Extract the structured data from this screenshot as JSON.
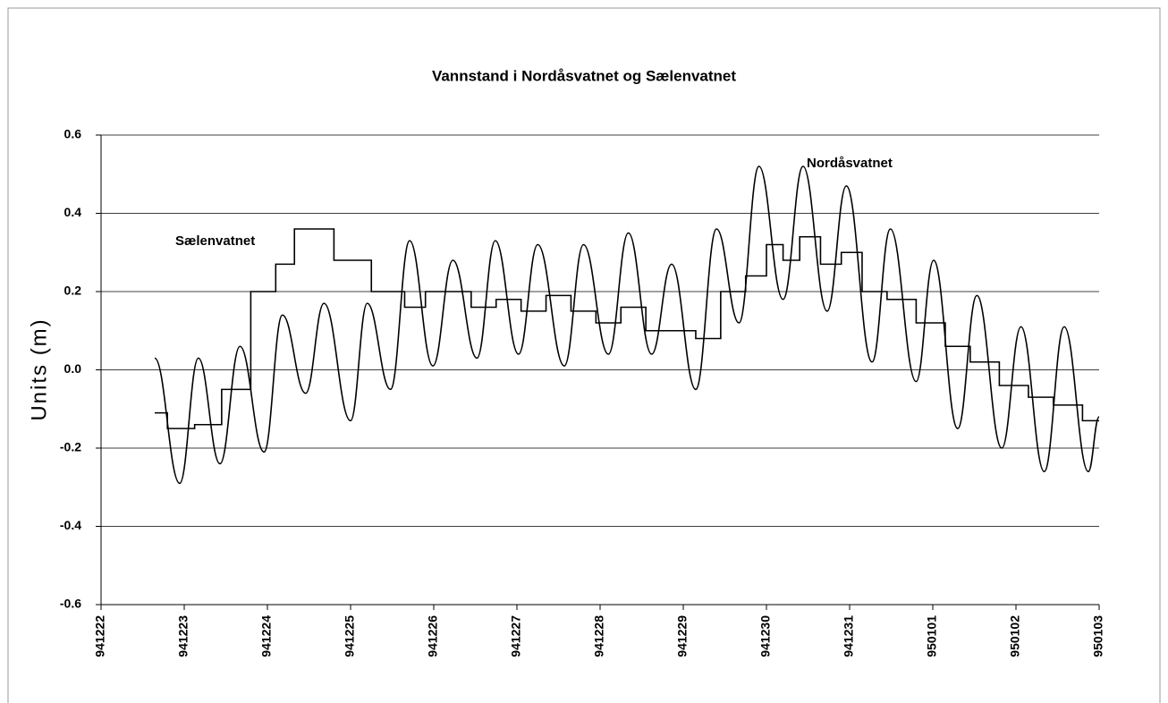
{
  "chart_data": {
    "type": "line",
    "title": "Vannstand i Nordåsvatnet og Sælenvatnet",
    "y_label": "Units  (m)",
    "annotations": [
      "Nordåsvatnet",
      "Sælenvatnet"
    ],
    "xlim": [
      0,
      12
    ],
    "xticks": [
      {
        "value": 0,
        "label": "941222"
      },
      {
        "value": 1,
        "label": "941223"
      },
      {
        "value": 2,
        "label": "941224"
      },
      {
        "value": 3,
        "label": "941225"
      },
      {
        "value": 4,
        "label": "941226"
      },
      {
        "value": 5,
        "label": "941227"
      },
      {
        "value": 6,
        "label": "941228"
      },
      {
        "value": 7,
        "label": "941229"
      },
      {
        "value": 8,
        "label": "941230"
      },
      {
        "value": 9,
        "label": "941231"
      },
      {
        "value": 10,
        "label": "950101"
      },
      {
        "value": 11,
        "label": "950102"
      },
      {
        "value": 12,
        "label": "950103"
      }
    ],
    "ylim": [
      -0.6,
      0.6
    ],
    "yticks": [
      -0.6,
      -0.4,
      -0.2,
      {
        "value": 0,
        "label": "0.0"
      },
      0.2,
      0.4,
      0.6
    ],
    "grid": true,
    "series": [
      {
        "name": "Nordåsvatnet",
        "color": "#000000",
        "smooth": true,
        "x": [
          0.645,
          0.946,
          1.17,
          1.43,
          1.67,
          1.96,
          2.18,
          2.46,
          2.68,
          3.0,
          3.2,
          3.48,
          3.71,
          3.99,
          4.23,
          4.52,
          4.74,
          5.02,
          5.25,
          5.57,
          5.8,
          6.1,
          6.34,
          6.62,
          6.86,
          7.15,
          7.4,
          7.67,
          7.91,
          8.2,
          8.44,
          8.73,
          8.96,
          9.27,
          9.49,
          9.8,
          10.01,
          10.3,
          10.53,
          10.83,
          11.06,
          11.34,
          11.58,
          11.87,
          12
        ],
        "values": [
          0.03,
          -0.29,
          0.03,
          -0.24,
          0.06,
          -0.21,
          0.14,
          -0.06,
          0.17,
          -0.13,
          0.17,
          -0.05,
          0.33,
          0.01,
          0.28,
          0.03,
          0.33,
          0.04,
          0.32,
          0.01,
          0.32,
          0.04,
          0.35,
          0.04,
          0.27,
          -0.05,
          0.36,
          0.12,
          0.52,
          0.18,
          0.52,
          0.15,
          0.47,
          0.02,
          0.36,
          -0.03,
          0.28,
          -0.15,
          0.19,
          -0.2,
          0.11,
          -0.26,
          0.11,
          -0.26,
          -0.12
        ]
      },
      {
        "name": "Sælenvatnet",
        "color": "#000000",
        "smooth": false,
        "x": [
          0.645,
          0.95,
          1.3,
          1.6,
          2.0,
          2.2,
          2.45,
          2.6,
          3.0,
          3.5,
          3.8,
          4.0,
          4.3,
          4.6,
          4.9,
          5.2,
          5.5,
          5.8,
          6.1,
          6.4,
          6.7,
          7.0,
          7.3,
          7.6,
          7.9,
          8.1,
          8.3,
          8.5,
          8.8,
          9.0,
          9.3,
          9.6,
          10.0,
          10.3,
          10.6,
          11.0,
          11.3,
          11.6,
          12.0
        ],
        "values": [
          -0.11,
          -0.15,
          -0.14,
          -0.05,
          0.2,
          0.27,
          0.36,
          0.36,
          0.28,
          0.2,
          0.16,
          0.2,
          0.2,
          0.16,
          0.18,
          0.15,
          0.19,
          0.15,
          0.12,
          0.16,
          0.1,
          0.1,
          0.08,
          0.2,
          0.24,
          0.32,
          0.28,
          0.34,
          0.27,
          0.3,
          0.2,
          0.18,
          0.12,
          0.06,
          0.02,
          -0.04,
          -0.07,
          -0.09,
          -0.13
        ]
      }
    ]
  }
}
